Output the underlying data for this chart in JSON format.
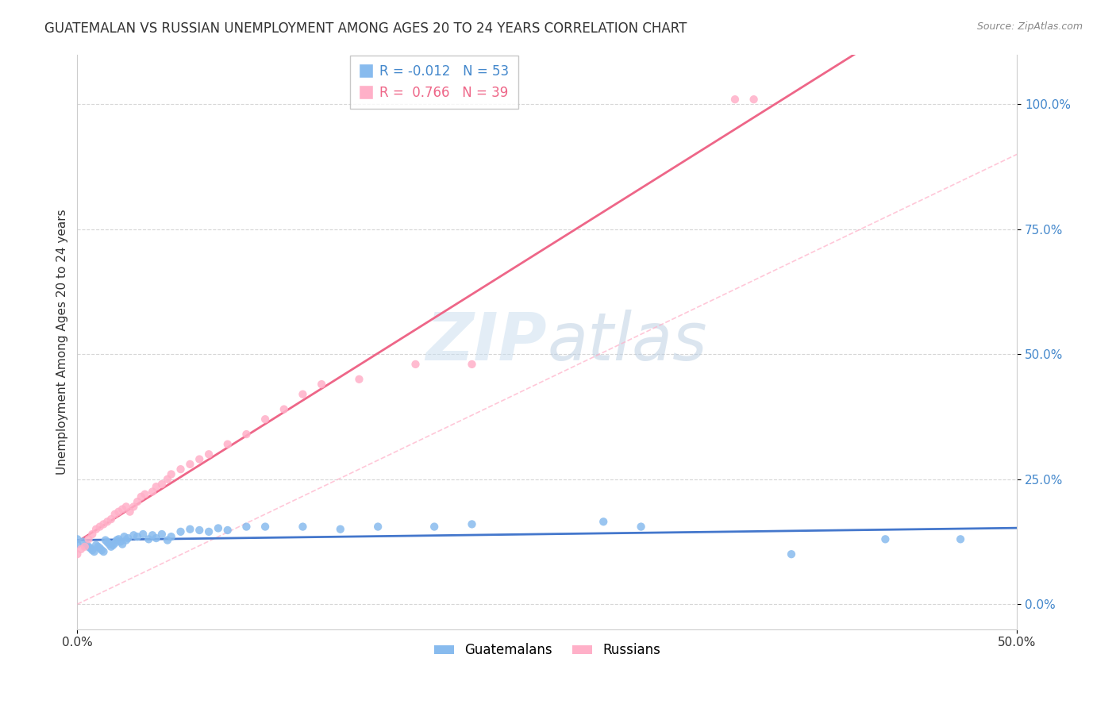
{
  "title": "GUATEMALAN VS RUSSIAN UNEMPLOYMENT AMONG AGES 20 TO 24 YEARS CORRELATION CHART",
  "source": "Source: ZipAtlas.com",
  "ylabel": "Unemployment Among Ages 20 to 24 years",
  "watermark": "ZIPatlas",
  "xlim": [
    0.0,
    0.5
  ],
  "ylim": [
    -0.05,
    1.1
  ],
  "xticks": [
    0.0,
    0.5
  ],
  "xticklabels": [
    "0.0%",
    "50.0%"
  ],
  "yticks": [
    0.0,
    0.25,
    0.5,
    0.75,
    1.0
  ],
  "yticklabels": [
    "0.0%",
    "25.0%",
    "50.0%",
    "75.0%",
    "100.0%"
  ],
  "guatemalan_color": "#88BBEE",
  "guatemalan_line_color": "#4477CC",
  "russian_color": "#FFB0C8",
  "russian_line_color": "#EE6688",
  "diagonal_color": "#FFB0C8",
  "guatemalan_R": -0.012,
  "guatemalan_N": 53,
  "russian_R": 0.766,
  "russian_N": 39,
  "guatemalan_x": [
    0.0,
    0.0,
    0.003,
    0.005,
    0.006,
    0.007,
    0.008,
    0.009,
    0.01,
    0.011,
    0.012,
    0.013,
    0.014,
    0.015,
    0.016,
    0.017,
    0.018,
    0.019,
    0.02,
    0.021,
    0.022,
    0.023,
    0.024,
    0.025,
    0.026,
    0.027,
    0.03,
    0.032,
    0.035,
    0.038,
    0.04,
    0.042,
    0.045,
    0.048,
    0.05,
    0.055,
    0.06,
    0.065,
    0.07,
    0.075,
    0.08,
    0.09,
    0.1,
    0.12,
    0.14,
    0.16,
    0.19,
    0.21,
    0.28,
    0.3,
    0.38,
    0.43,
    0.47
  ],
  "guatemalan_y": [
    0.13,
    0.12,
    0.125,
    0.118,
    0.115,
    0.112,
    0.108,
    0.105,
    0.118,
    0.115,
    0.112,
    0.108,
    0.105,
    0.128,
    0.124,
    0.12,
    0.115,
    0.118,
    0.122,
    0.128,
    0.13,
    0.125,
    0.12,
    0.135,
    0.128,
    0.132,
    0.138,
    0.135,
    0.14,
    0.13,
    0.138,
    0.132,
    0.14,
    0.128,
    0.135,
    0.145,
    0.15,
    0.148,
    0.145,
    0.152,
    0.148,
    0.155,
    0.155,
    0.155,
    0.15,
    0.155,
    0.155,
    0.16,
    0.165,
    0.155,
    0.1,
    0.13,
    0.13
  ],
  "russian_x": [
    0.0,
    0.002,
    0.004,
    0.006,
    0.008,
    0.01,
    0.012,
    0.014,
    0.016,
    0.018,
    0.02,
    0.022,
    0.024,
    0.026,
    0.028,
    0.03,
    0.032,
    0.034,
    0.036,
    0.04,
    0.042,
    0.045,
    0.048,
    0.05,
    0.055,
    0.06,
    0.065,
    0.07,
    0.08,
    0.09,
    0.1,
    0.11,
    0.12,
    0.13,
    0.15,
    0.18,
    0.21,
    0.35,
    0.36
  ],
  "russian_y": [
    0.1,
    0.11,
    0.115,
    0.13,
    0.14,
    0.15,
    0.155,
    0.16,
    0.165,
    0.17,
    0.18,
    0.185,
    0.19,
    0.195,
    0.185,
    0.195,
    0.205,
    0.215,
    0.22,
    0.225,
    0.235,
    0.24,
    0.25,
    0.26,
    0.27,
    0.28,
    0.29,
    0.3,
    0.32,
    0.34,
    0.37,
    0.39,
    0.42,
    0.44,
    0.45,
    0.48,
    0.48,
    1.01,
    1.01
  ],
  "background_color": "#FFFFFF",
  "grid_color": "#CCCCCC",
  "title_fontsize": 12,
  "axis_fontsize": 11,
  "tick_fontsize": 11,
  "legend_fontsize": 12,
  "ytick_color": "#4488CC"
}
